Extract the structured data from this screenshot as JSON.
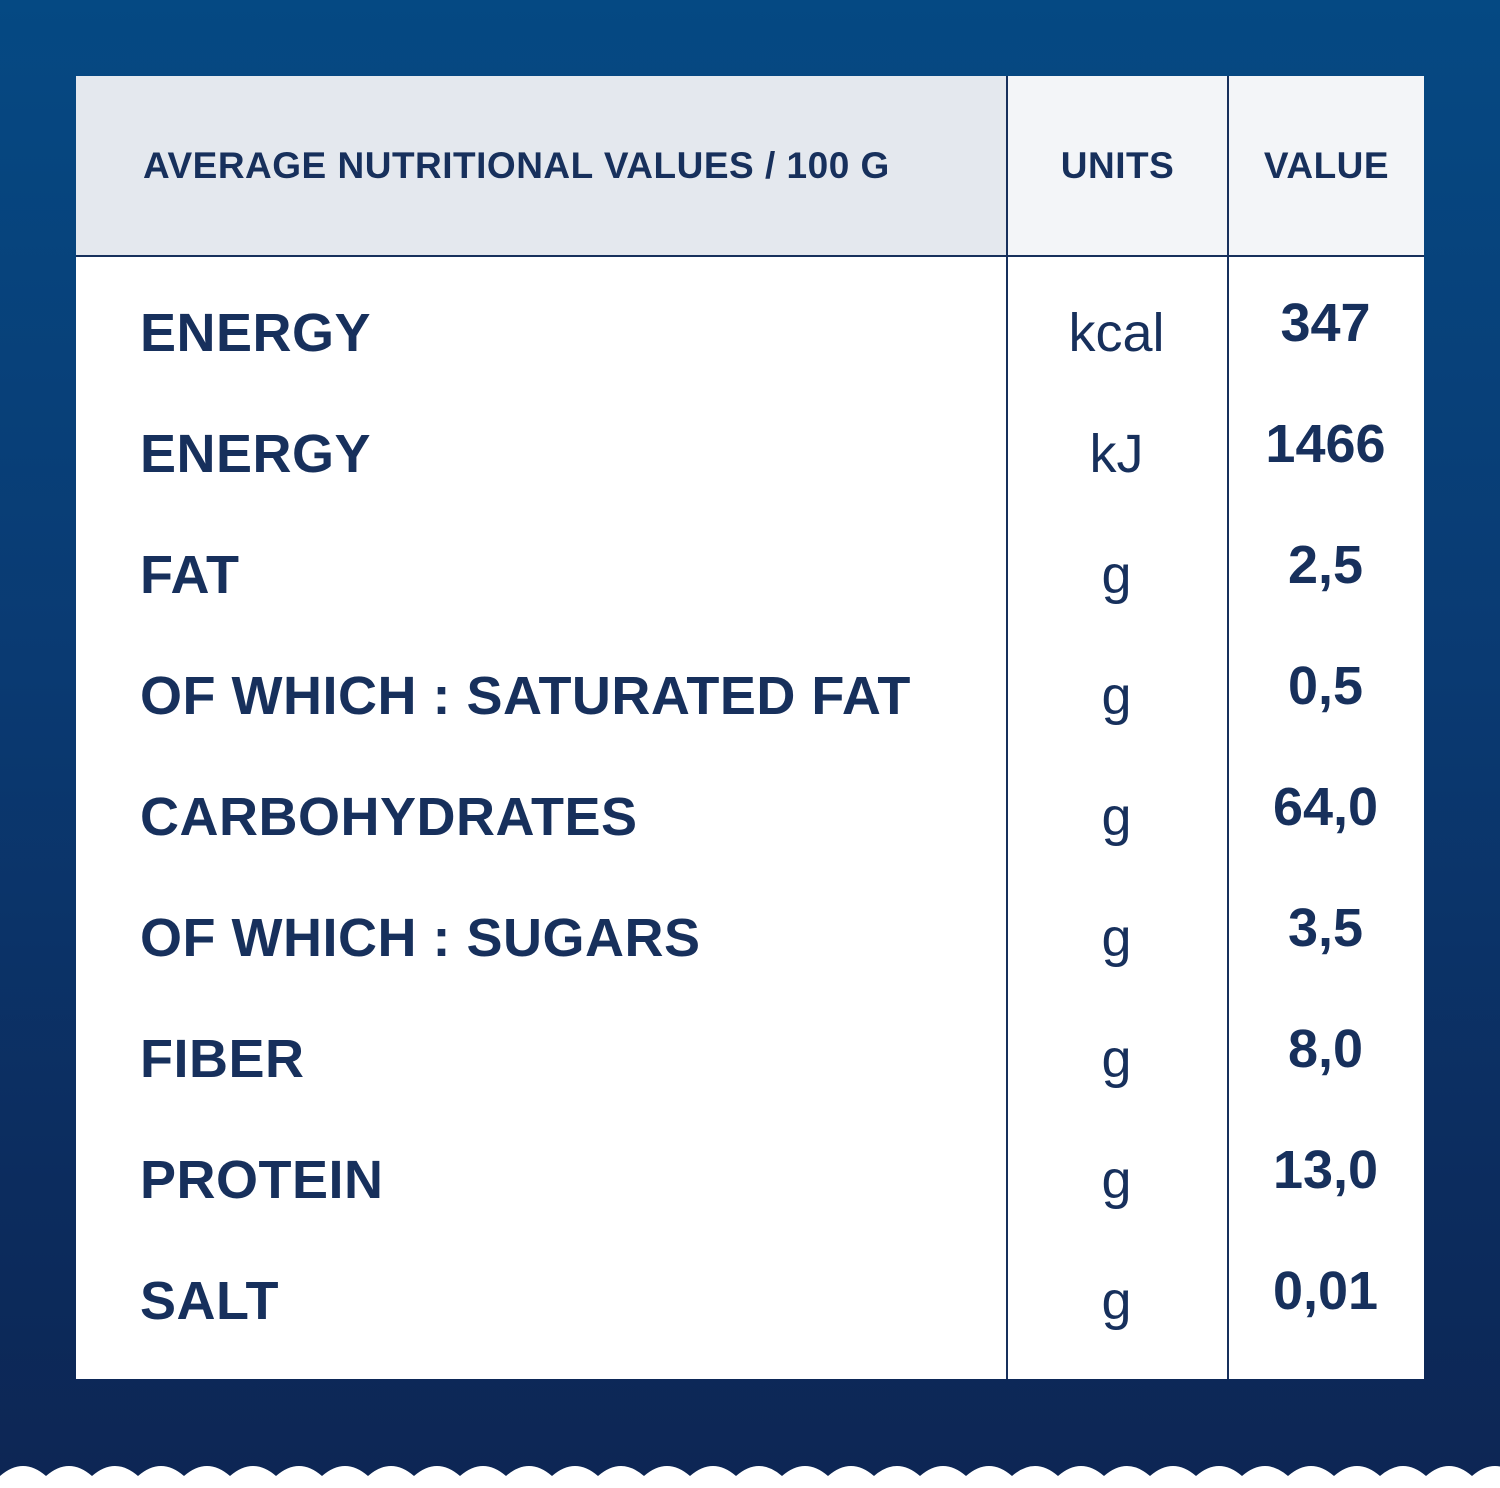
{
  "header": {
    "nutrient": "AVERAGE NUTRITIONAL VALUES / 100 G",
    "units": "UNITS",
    "value": "VALUE"
  },
  "rows": [
    {
      "nutrient": "ENERGY",
      "unit": "kcal",
      "value": "347"
    },
    {
      "nutrient": "ENERGY",
      "unit": "kJ",
      "value": "1466"
    },
    {
      "nutrient": "FAT",
      "unit": "g",
      "value": "2,5"
    },
    {
      "nutrient": "OF WHICH : SATURATED FAT",
      "unit": "g",
      "value": "0,5"
    },
    {
      "nutrient": "CARBOHYDRATES",
      "unit": "g",
      "value": "64,0"
    },
    {
      "nutrient": "OF WHICH : SUGARS",
      "unit": "g",
      "value": "3,5"
    },
    {
      "nutrient": "FIBER",
      "unit": "g",
      "value": "8,0"
    },
    {
      "nutrient": "PROTEIN",
      "unit": "g",
      "value": "13,0"
    },
    {
      "nutrient": "SALT",
      "unit": "g",
      "value": "0,01"
    }
  ],
  "colors": {
    "background_top": "#054983",
    "background_bottom": "#0d2654",
    "text_navy": "#17305c",
    "header_fill": "#e4e8ee"
  }
}
